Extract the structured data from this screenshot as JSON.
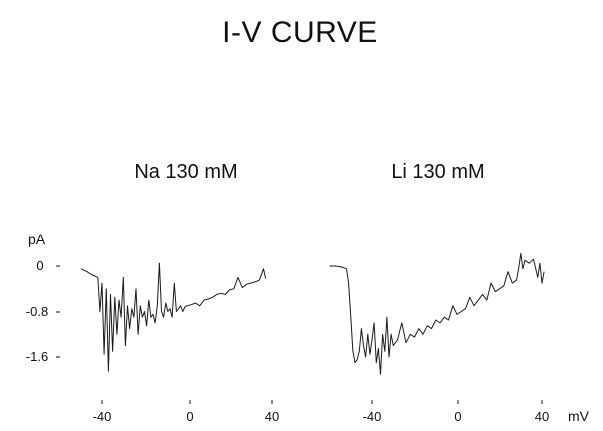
{
  "chart_data": {
    "title": "I-V CURVE",
    "type": "line",
    "ylabel": "pA",
    "xlabel": "mV",
    "y_ticks": [
      "0",
      "-0.8",
      "-1.6"
    ],
    "y_tick_values": [
      0,
      -0.8,
      -1.6
    ],
    "x_ticks": [
      "-40",
      "0",
      "40"
    ],
    "x_tick_values": [
      -40,
      0,
      40
    ],
    "ylim": [
      -2.0,
      0.3
    ],
    "grid": false,
    "panels": [
      {
        "label": "Na  130 mM",
        "xlim": [
          -50,
          40
        ],
        "series": [
          {
            "x": [
              -50,
              -47,
              -45,
              -42,
              -41,
              -40,
              -39,
              -38,
              -37,
              -36,
              -35,
              -34,
              -33,
              -32,
              -31,
              -30,
              -29,
              -28,
              -27,
              -26,
              -25,
              -24,
              -23,
              -22,
              -21,
              -20,
              -19,
              -18,
              -17,
              -16,
              -15,
              -14,
              -13,
              -12,
              -11,
              -10,
              -9,
              -8,
              -7,
              -6,
              -5,
              -4,
              -3,
              -2,
              -1,
              0,
              2,
              4,
              6,
              8,
              10,
              12,
              14,
              16,
              18,
              20,
              22,
              24,
              26,
              28,
              30,
              32,
              34,
              36,
              37
            ],
            "y": [
              -0.05,
              -0.1,
              -0.15,
              -0.2,
              -0.8,
              -0.3,
              -1.55,
              -0.4,
              -1.85,
              -0.5,
              -1.5,
              -0.55,
              -1.2,
              -0.6,
              -0.9,
              -0.2,
              -1.4,
              -0.7,
              -1.1,
              -0.75,
              -0.9,
              -0.4,
              -1.2,
              -0.7,
              -0.9,
              -0.8,
              -1.05,
              -0.6,
              -0.9,
              -0.85,
              -1.0,
              -0.7,
              0.05,
              -0.8,
              -0.9,
              -0.65,
              -0.8,
              -0.75,
              -0.9,
              -0.3,
              -0.8,
              -0.75,
              -0.7,
              -0.8,
              -0.72,
              -0.7,
              -0.68,
              -0.65,
              -0.7,
              -0.6,
              -0.58,
              -0.55,
              -0.5,
              -0.48,
              -0.5,
              -0.42,
              -0.4,
              -0.2,
              -0.38,
              -0.32,
              -0.3,
              -0.28,
              -0.25,
              -0.05,
              -0.22
            ]
          }
        ]
      },
      {
        "label": "Li  130 mM",
        "xlim": [
          -60,
          45
        ],
        "series": [
          {
            "x": [
              -60,
              -57,
              -54,
              -52,
              -51,
              -50,
              -49,
              -48,
              -47,
              -46,
              -45,
              -44,
              -43,
              -42,
              -41,
              -40,
              -39,
              -38,
              -37,
              -36,
              -35,
              -34,
              -33,
              -32,
              -31,
              -30,
              -28,
              -26,
              -24,
              -22,
              -20,
              -18,
              -16,
              -14,
              -12,
              -10,
              -8,
              -6,
              -4,
              -2,
              0,
              2,
              4,
              6,
              8,
              10,
              12,
              14,
              16,
              18,
              20,
              22,
              24,
              26,
              28,
              29,
              30,
              31,
              32,
              34,
              36,
              38,
              39,
              40,
              41
            ],
            "y": [
              0.0,
              0.0,
              -0.02,
              -0.05,
              -0.3,
              -0.9,
              -1.5,
              -1.7,
              -1.65,
              -1.5,
              -1.1,
              -1.4,
              -1.6,
              -1.2,
              -1.55,
              -1.3,
              -1.0,
              -1.7,
              -1.45,
              -1.9,
              -1.2,
              -1.5,
              -0.9,
              -1.6,
              -1.2,
              -1.4,
              -1.3,
              -1.0,
              -1.35,
              -1.2,
              -1.25,
              -1.1,
              -1.2,
              -1.05,
              -1.1,
              -0.95,
              -1.0,
              -0.9,
              -0.95,
              -0.7,
              -0.85,
              -0.8,
              -0.75,
              -0.55,
              -0.7,
              -0.6,
              -0.5,
              -0.6,
              -0.3,
              -0.45,
              -0.4,
              -0.35,
              -0.1,
              -0.3,
              -0.25,
              -0.05,
              0.22,
              -0.05,
              0.1,
              0.05,
              0.12,
              -0.2,
              0.05,
              -0.3,
              -0.1
            ]
          }
        ]
      }
    ]
  }
}
